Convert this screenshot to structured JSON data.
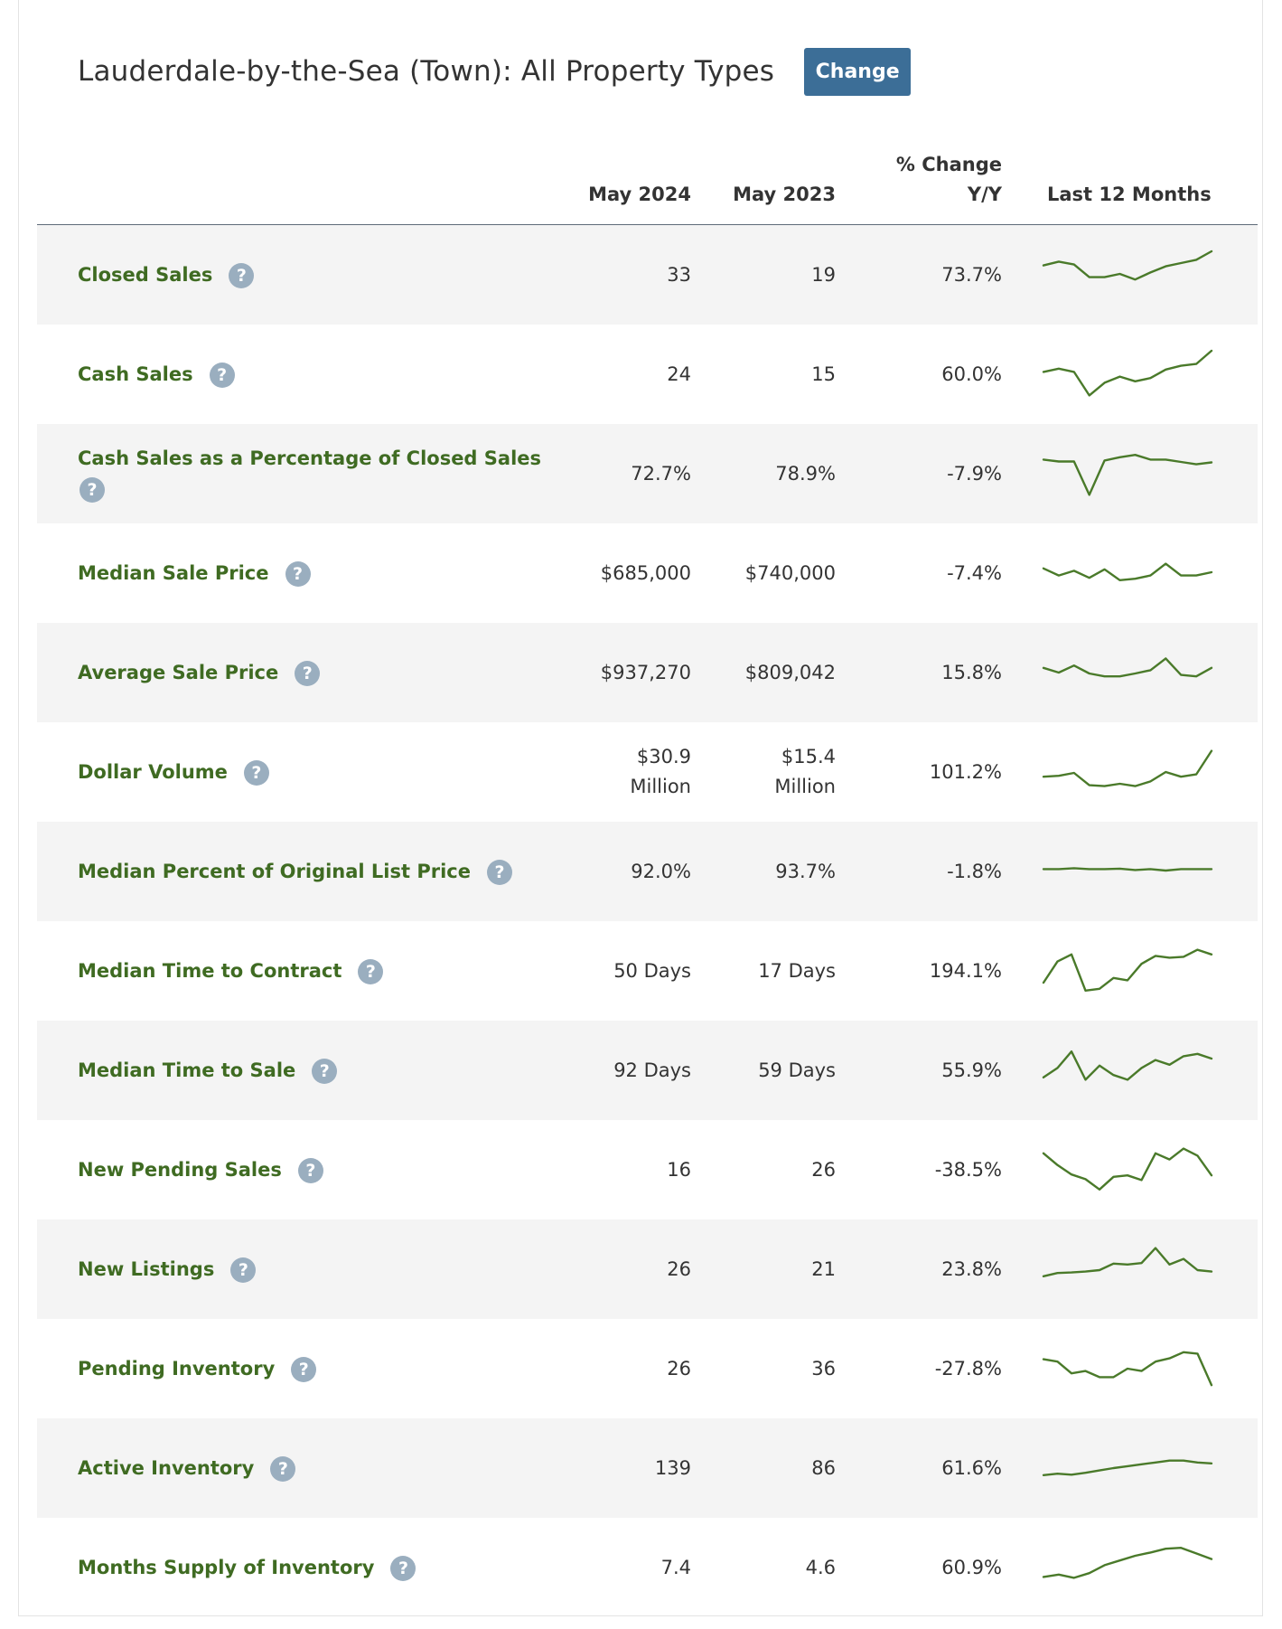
{
  "header": {
    "title": "Lauderdale-by-the-Sea (Town): All Property Types",
    "change_label": "Change"
  },
  "columns": {
    "current": "May 2024",
    "prior": "May 2023",
    "pct_line1": "% Change",
    "pct_line2": "Y/Y",
    "trend": "Last 12 Months"
  },
  "help_glyph": "?",
  "colors": {
    "accent_button": "#3c6e97",
    "label_green": "#3f6b22",
    "sparkline": "#4a7a2a",
    "help_icon": "#9aaebf",
    "row_shade": "#f4f4f4"
  },
  "rows": [
    {
      "label": "Closed Sales",
      "current": "33",
      "prior": "19",
      "pct": "73.7%",
      "trend": [
        0.7,
        0.78,
        0.72,
        0.45,
        0.45,
        0.52,
        0.4,
        0.55,
        0.68,
        0.75,
        0.82,
        1.0
      ]
    },
    {
      "label": "Cash Sales",
      "current": "24",
      "prior": "15",
      "pct": "60.0%",
      "trend": [
        0.55,
        0.62,
        0.55,
        0.05,
        0.32,
        0.45,
        0.35,
        0.42,
        0.6,
        0.68,
        0.72,
        1.0
      ]
    },
    {
      "label": "Cash Sales as a Percentage of Closed Sales",
      "current": "72.7%",
      "prior": "78.9%",
      "pct": "-7.9%",
      "trend": [
        0.8,
        0.76,
        0.76,
        0.05,
        0.78,
        0.85,
        0.9,
        0.8,
        0.8,
        0.75,
        0.7,
        0.74
      ]
    },
    {
      "label": "Median Sale Price",
      "current": "$685,000",
      "prior": "$740,000",
      "pct": "-7.4%",
      "trend": [
        0.6,
        0.45,
        0.55,
        0.4,
        0.58,
        0.35,
        0.38,
        0.45,
        0.7,
        0.45,
        0.45,
        0.52
      ]
    },
    {
      "label": "Average Sale Price",
      "current": "$937,270",
      "prior": "$809,042",
      "pct": "15.8%",
      "trend": [
        0.6,
        0.5,
        0.65,
        0.48,
        0.42,
        0.42,
        0.48,
        0.55,
        0.8,
        0.45,
        0.42,
        0.6
      ]
    },
    {
      "label": "Dollar Volume",
      "current": "$30.9 Million",
      "prior": "$15.4 Million",
      "pct": "101.2%",
      "trend": [
        0.4,
        0.42,
        0.48,
        0.22,
        0.2,
        0.25,
        0.2,
        0.3,
        0.5,
        0.4,
        0.45,
        0.95
      ]
    },
    {
      "label": "Median Percent of Original List Price",
      "current": "92.0%",
      "prior": "93.7%",
      "pct": "-1.8%",
      "trend": [
        0.55,
        0.55,
        0.57,
        0.55,
        0.55,
        0.56,
        0.53,
        0.55,
        0.52,
        0.55,
        0.55,
        0.55
      ]
    },
    {
      "label": "Median Time to Contract",
      "current": "50 Days",
      "prior": "17 Days",
      "pct": "194.1%",
      "trend": [
        0.25,
        0.7,
        0.85,
        0.08,
        0.12,
        0.35,
        0.3,
        0.65,
        0.82,
        0.78,
        0.8,
        0.95,
        0.85
      ]
    },
    {
      "label": "Median Time to Sale",
      "current": "92 Days",
      "prior": "59 Days",
      "pct": "55.9%",
      "trend": [
        0.35,
        0.55,
        0.9,
        0.3,
        0.6,
        0.4,
        0.3,
        0.55,
        0.72,
        0.62,
        0.8,
        0.85,
        0.75
      ]
    },
    {
      "label": "New Pending Sales",
      "current": "16",
      "prior": "26",
      "pct": "-38.5%",
      "trend": [
        0.85,
        0.6,
        0.4,
        0.3,
        0.08,
        0.35,
        0.38,
        0.28,
        0.85,
        0.72,
        0.95,
        0.8,
        0.38
      ]
    },
    {
      "label": "New Listings",
      "current": "26",
      "prior": "21",
      "pct": "23.8%",
      "trend": [
        0.35,
        0.42,
        0.43,
        0.45,
        0.48,
        0.62,
        0.6,
        0.63,
        0.95,
        0.6,
        0.72,
        0.48,
        0.45
      ]
    },
    {
      "label": "Pending Inventory",
      "current": "26",
      "prior": "36",
      "pct": "-27.8%",
      "trend": [
        0.7,
        0.65,
        0.4,
        0.45,
        0.32,
        0.32,
        0.5,
        0.45,
        0.65,
        0.72,
        0.85,
        0.82,
        0.15
      ]
    },
    {
      "label": "Active Inventory",
      "current": "139",
      "prior": "86",
      "pct": "61.6%",
      "trend": [
        0.35,
        0.38,
        0.36,
        0.4,
        0.45,
        0.5,
        0.54,
        0.58,
        0.62,
        0.66,
        0.66,
        0.62,
        0.6
      ]
    },
    {
      "label": "Months Supply of Inventory",
      "current": "7.4",
      "prior": "4.6",
      "pct": "60.9%",
      "trend": [
        0.3,
        0.35,
        0.28,
        0.38,
        0.55,
        0.65,
        0.75,
        0.82,
        0.9,
        0.92,
        0.8,
        0.68
      ]
    }
  ]
}
